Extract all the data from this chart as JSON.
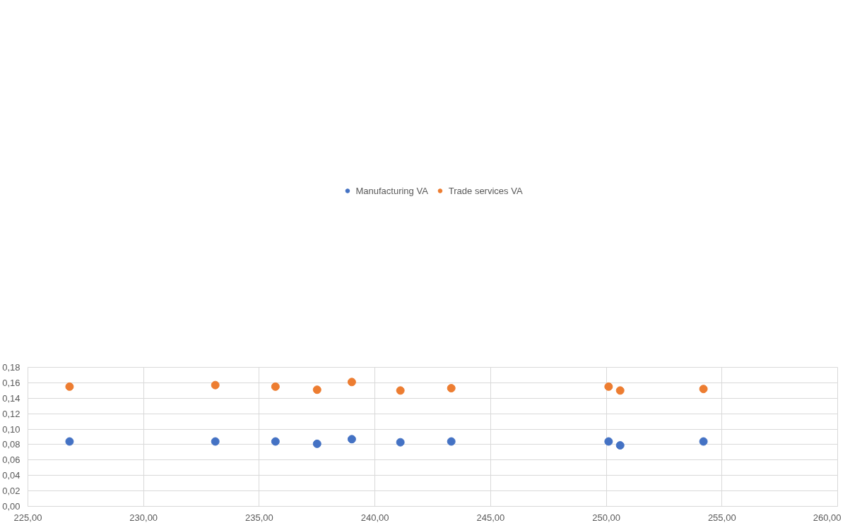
{
  "chart_data": {
    "type": "scatter",
    "legend": "top",
    "grid": true,
    "marker": "circle",
    "x": [
      226.8,
      233.1,
      235.7,
      237.5,
      239.0,
      241.1,
      243.3,
      250.1,
      250.6,
      254.2
    ],
    "series": [
      {
        "name": "Manufacturing VA",
        "color": "#4472c4",
        "values": [
          0.084,
          0.084,
          0.084,
          0.081,
          0.087,
          0.083,
          0.084,
          0.084,
          0.079,
          0.084
        ]
      },
      {
        "name": "Trade services VA",
        "color": "#ed7d31",
        "values": [
          0.155,
          0.157,
          0.155,
          0.151,
          0.161,
          0.15,
          0.153,
          0.155,
          0.15,
          0.152
        ]
      }
    ],
    "xlim": [
      225,
      260
    ],
    "xticks": [
      {
        "value": 225,
        "label": "225,00"
      },
      {
        "value": 230,
        "label": "230,00"
      },
      {
        "value": 235,
        "label": "235,00"
      },
      {
        "value": 240,
        "label": "240,00"
      },
      {
        "value": 245,
        "label": "245,00"
      },
      {
        "value": 250,
        "label": "250,00"
      },
      {
        "value": 255,
        "label": "255,00"
      },
      {
        "value": 260,
        "label": "260,00"
      }
    ],
    "ylim": [
      0,
      0.18
    ],
    "yticks": [
      {
        "value": 0,
        "label": "0,00"
      },
      {
        "value": 0.02,
        "label": "0,02"
      },
      {
        "value": 0.04,
        "label": "0,04"
      },
      {
        "value": 0.06,
        "label": "0,06"
      },
      {
        "value": 0.08,
        "label": "0,08"
      },
      {
        "value": 0.1,
        "label": "0,10"
      },
      {
        "value": 0.12,
        "label": "0,12"
      },
      {
        "value": 0.14,
        "label": "0,14"
      },
      {
        "value": 0.16,
        "label": "0,16"
      },
      {
        "value": 0.18,
        "label": "0,18"
      }
    ]
  }
}
